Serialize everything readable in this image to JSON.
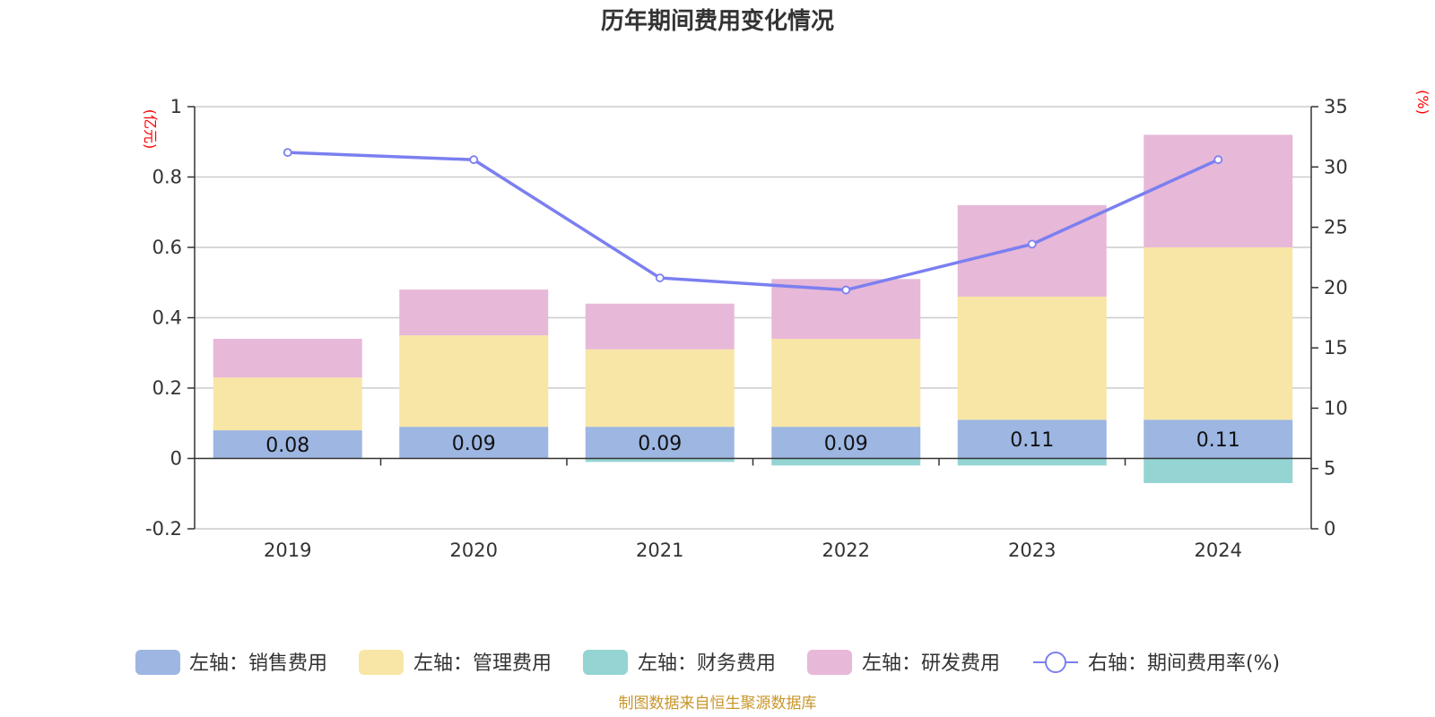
{
  "title": "历年期间费用变化情况",
  "source_note": "制图数据来自恒生聚源数据库",
  "colors": {
    "sales": "#9db6e2",
    "admin": "#f8e6a6",
    "finance": "#94d4d2",
    "rd": "#e7b8d8",
    "rate": "#7b7ff0",
    "grid": "#cccccc",
    "unit": "#ff0000",
    "source": "#c8962a"
  },
  "chart_data": {
    "type": "bar",
    "stacked": true,
    "title": "历年期间费用变化情况",
    "categories": [
      "2019",
      "2020",
      "2021",
      "2022",
      "2023",
      "2024"
    ],
    "left_axis": {
      "unit": "(亿元)",
      "ylim": [
        -0.2,
        1
      ],
      "ticks": [
        "-0.2",
        "0",
        "0.2",
        "0.4",
        "0.6",
        "0.8",
        "1"
      ]
    },
    "right_axis": {
      "unit": "(%)",
      "ylim": [
        0,
        35
      ],
      "ticks": [
        "0",
        "5",
        "10",
        "15",
        "20",
        "25",
        "30",
        "35"
      ]
    },
    "series": [
      {
        "name": "左轴：销售费用",
        "key": "sales",
        "axis": "left",
        "type": "bar",
        "values": [
          0.08,
          0.09,
          0.09,
          0.09,
          0.11,
          0.11
        ],
        "labels": [
          "0.08",
          "0.09",
          "0.09",
          "0.09",
          "0.11",
          "0.11"
        ]
      },
      {
        "name": "左轴：管理费用",
        "key": "admin",
        "axis": "left",
        "type": "bar",
        "values": [
          0.15,
          0.26,
          0.22,
          0.25,
          0.35,
          0.49
        ]
      },
      {
        "name": "左轴：财务费用",
        "key": "finance",
        "axis": "left",
        "type": "bar",
        "values": [
          0.0,
          0.0,
          -0.01,
          -0.02,
          -0.02,
          -0.07
        ]
      },
      {
        "name": "左轴：研发费用",
        "key": "rd",
        "axis": "left",
        "type": "bar",
        "values": [
          0.11,
          0.13,
          0.13,
          0.17,
          0.26,
          0.32
        ]
      },
      {
        "name": "右轴：期间费用率(%)",
        "key": "rate",
        "axis": "right",
        "type": "line",
        "values": [
          31.2,
          30.6,
          20.8,
          19.8,
          23.6,
          30.6
        ]
      }
    ],
    "grid": true,
    "legend_position": "bottom"
  }
}
